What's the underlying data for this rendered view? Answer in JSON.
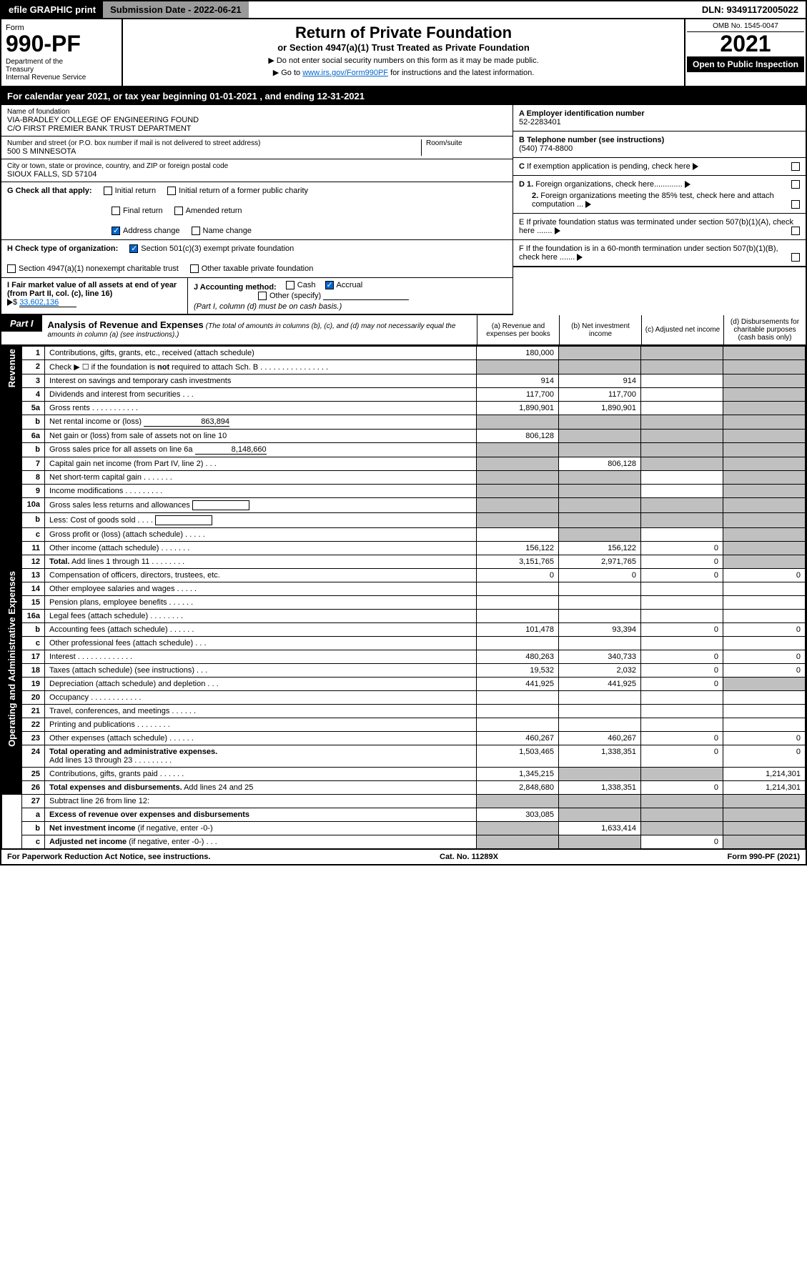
{
  "topbar": {
    "efile": "efile GRAPHIC print",
    "submission": "Submission Date - 2022-06-21",
    "dln": "DLN: 93491172005022"
  },
  "header": {
    "form_label": "Form",
    "form_number": "990-PF",
    "dept": "Department of the Treasury\nInternal Revenue Service",
    "title": "Return of Private Foundation",
    "subtitle": "or Section 4947(a)(1) Trust Treated as Private Foundation",
    "note1": "▶ Do not enter social security numbers on this form as it may be made public.",
    "note2_pre": "▶ Go to ",
    "note2_link": "www.irs.gov/Form990PF",
    "note2_post": " for instructions and the latest information.",
    "omb": "OMB No. 1545-0047",
    "year": "2021",
    "inspection": "Open to Public Inspection"
  },
  "calyear": "For calendar year 2021, or tax year beginning 01-01-2021                          , and ending 12-31-2021",
  "info": {
    "name_label": "Name of foundation",
    "name1": "VIA-BRADLEY COLLEGE OF ENGINEERING FOUND",
    "name2": "C/O FIRST PREMIER BANK TRUST DEPARTMENT",
    "addr_label": "Number and street (or P.O. box number if mail is not delivered to street address)",
    "addr": "500 S MINNESOTA",
    "room_label": "Room/suite",
    "city_label": "City or town, state or province, country, and ZIP or foreign postal code",
    "city": "SIOUX FALLS, SD  57104",
    "ein_label": "A Employer identification number",
    "ein": "52-2283401",
    "phone_label": "B Telephone number (see instructions)",
    "phone": "(540) 774-8800",
    "c_label": "C If exemption application is pending, check here",
    "d1": "D 1. Foreign organizations, check here.............",
    "d2": "2. Foreign organizations meeting the 85% test, check here and attach computation ...",
    "e_label": "E  If private foundation status was terminated under section 507(b)(1)(A), check here .......",
    "f_label": "F  If the foundation is in a 60-month termination under section 507(b)(1)(B), check here ......."
  },
  "checks": {
    "g_label": "G Check all that apply:",
    "initial": "Initial return",
    "initial_former": "Initial return of a former public charity",
    "final": "Final return",
    "amended": "Amended return",
    "addr_change": "Address change",
    "name_change": "Name change",
    "h_label": "H Check type of organization:",
    "h1": "Section 501(c)(3) exempt private foundation",
    "h2": "Section 4947(a)(1) nonexempt charitable trust",
    "h3": "Other taxable private foundation",
    "i_label": "I Fair market value of all assets at end of year (from Part II, col. (c), line 16)",
    "i_val": "33,602,136",
    "j_label": "J Accounting method:",
    "j_cash": "Cash",
    "j_accrual": "Accrual",
    "j_other": "Other (specify)",
    "j_note": "(Part I, column (d) must be on cash basis.)"
  },
  "part1": {
    "label": "Part I",
    "title": "Analysis of Revenue and Expenses",
    "title_note": "(The total of amounts in columns (b), (c), and (d) may not necessarily equal the amounts in column (a) (see instructions).)",
    "col_a": "(a)   Revenue and expenses per books",
    "col_b": "(b)   Net investment income",
    "col_c": "(c)   Adjusted net income",
    "col_d": "(d)   Disbursements for charitable purposes (cash basis only)"
  },
  "sides": {
    "revenue": "Revenue",
    "expenses": "Operating and Administrative Expenses"
  },
  "rows": [
    {
      "n": "1",
      "d": "",
      "a": "180,000",
      "b": "",
      "c": "",
      "grey": [
        "b",
        "c",
        "d"
      ]
    },
    {
      "n": "2",
      "d": "",
      "a": "",
      "b": "",
      "c": "",
      "grey": [
        "a",
        "b",
        "c",
        "d"
      ]
    },
    {
      "n": "3",
      "d": "",
      "a": "914",
      "b": "914",
      "c": "",
      "grey": [
        "d"
      ]
    },
    {
      "n": "4",
      "d": "",
      "a": "117,700",
      "b": "117,700",
      "c": "",
      "grey": [
        "d"
      ]
    },
    {
      "n": "5a",
      "d": "",
      "a": "1,890,901",
      "b": "1,890,901",
      "c": "",
      "grey": [
        "d"
      ]
    },
    {
      "n": "b",
      "d": "",
      "a": "",
      "b": "",
      "c": "",
      "grey": [
        "a",
        "b",
        "c",
        "d"
      ],
      "inline_val": "863,894"
    },
    {
      "n": "6a",
      "d": "",
      "a": "806,128",
      "b": "",
      "c": "",
      "grey": [
        "b",
        "c",
        "d"
      ]
    },
    {
      "n": "b",
      "d": "",
      "a": "",
      "b": "",
      "c": "",
      "grey": [
        "a",
        "b",
        "c",
        "d"
      ]
    },
    {
      "n": "7",
      "d": "",
      "a": "",
      "b": "806,128",
      "c": "",
      "grey": [
        "a",
        "c",
        "d"
      ]
    },
    {
      "n": "8",
      "d": "",
      "a": "",
      "b": "",
      "c": "",
      "grey": [
        "a",
        "b",
        "d"
      ]
    },
    {
      "n": "9",
      "d": "",
      "a": "",
      "b": "",
      "c": "",
      "grey": [
        "a",
        "b",
        "d"
      ]
    },
    {
      "n": "10a",
      "d": "",
      "a": "",
      "b": "",
      "c": "",
      "grey": [
        "a",
        "b",
        "c",
        "d"
      ]
    },
    {
      "n": "b",
      "d": "",
      "a": "",
      "b": "",
      "c": "",
      "grey": [
        "a",
        "b",
        "c",
        "d"
      ]
    },
    {
      "n": "c",
      "d": "",
      "a": "",
      "b": "",
      "c": "",
      "grey": [
        "b",
        "d"
      ]
    },
    {
      "n": "11",
      "d": "",
      "a": "156,122",
      "b": "156,122",
      "c": "0",
      "grey": [
        "d"
      ]
    },
    {
      "n": "12",
      "d": "",
      "a": "3,151,765",
      "b": "2,971,765",
      "c": "0",
      "grey": [
        "d"
      ],
      "bold": true
    },
    {
      "n": "13",
      "d": "0",
      "a": "0",
      "b": "0",
      "c": "0"
    },
    {
      "n": "14",
      "d": "",
      "a": "",
      "b": "",
      "c": ""
    },
    {
      "n": "15",
      "d": "",
      "a": "",
      "b": "",
      "c": ""
    },
    {
      "n": "16a",
      "d": "",
      "a": "",
      "b": "",
      "c": ""
    },
    {
      "n": "b",
      "d": "0",
      "a": "101,478",
      "b": "93,394",
      "c": "0"
    },
    {
      "n": "c",
      "d": "",
      "a": "",
      "b": "",
      "c": ""
    },
    {
      "n": "17",
      "d": "0",
      "a": "480,263",
      "b": "340,733",
      "c": "0"
    },
    {
      "n": "18",
      "d": "0",
      "a": "19,532",
      "b": "2,032",
      "c": "0"
    },
    {
      "n": "19",
      "d": "",
      "a": "441,925",
      "b": "441,925",
      "c": "0",
      "grey": [
        "d"
      ]
    },
    {
      "n": "20",
      "d": "",
      "a": "",
      "b": "",
      "c": ""
    },
    {
      "n": "21",
      "d": "",
      "a": "",
      "b": "",
      "c": ""
    },
    {
      "n": "22",
      "d": "",
      "a": "",
      "b": "",
      "c": ""
    },
    {
      "n": "23",
      "d": "0",
      "a": "460,267",
      "b": "460,267",
      "c": "0"
    },
    {
      "n": "24",
      "d": "0",
      "a": "1,503,465",
      "b": "1,338,351",
      "c": "0",
      "bold": true
    },
    {
      "n": "25",
      "d": "1,214,301",
      "a": "1,345,215",
      "b": "",
      "c": "",
      "grey": [
        "b",
        "c"
      ]
    },
    {
      "n": "26",
      "d": "1,214,301",
      "a": "2,848,680",
      "b": "1,338,351",
      "c": "0",
      "bold": true
    },
    {
      "n": "27",
      "d": "",
      "a": "",
      "b": "",
      "c": "",
      "grey": [
        "a",
        "b",
        "c",
        "d"
      ]
    },
    {
      "n": "a",
      "d": "",
      "a": "303,085",
      "b": "",
      "c": "",
      "grey": [
        "b",
        "c",
        "d"
      ],
      "bold": true
    },
    {
      "n": "b",
      "d": "",
      "a": "",
      "b": "1,633,414",
      "c": "",
      "grey": [
        "a",
        "c",
        "d"
      ],
      "bold": true
    },
    {
      "n": "c",
      "d": "",
      "a": "",
      "b": "",
      "c": "0",
      "grey": [
        "a",
        "b",
        "d"
      ],
      "bold": true
    }
  ],
  "footer": {
    "left": "For Paperwork Reduction Act Notice, see instructions.",
    "mid": "Cat. No. 11289X",
    "right": "Form 990-PF (2021)"
  }
}
